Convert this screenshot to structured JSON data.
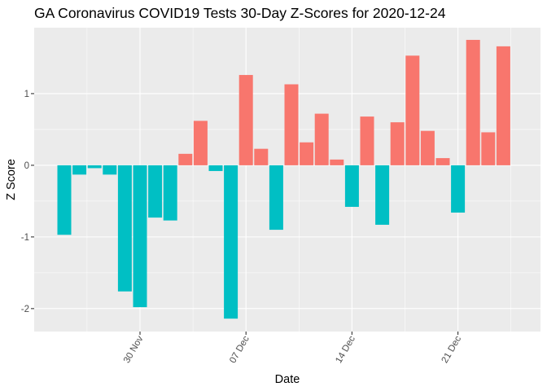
{
  "chart_data": {
    "type": "bar",
    "title": "GA Coronavirus COVID19 Tests 30-Day Z-Scores for 2020-12-24",
    "xlabel": "Date",
    "ylabel": "Z Score",
    "x_ticks": [
      "30 Nov",
      "07 Dec",
      "14 Dec",
      "21 Dec"
    ],
    "y_ticks": [
      -2,
      -1,
      0,
      1
    ],
    "ylim": [
      -2.32,
      1.92
    ],
    "grid": true,
    "legend": "none",
    "colors": {
      "positive": "#F8766D",
      "negative": "#00BFC4",
      "panel": "#EBEBEB",
      "grid": "#FFFFFF"
    },
    "categories": [
      "2020-11-25",
      "2020-11-26",
      "2020-11-27",
      "2020-11-28",
      "2020-11-29",
      "2020-11-30",
      "2020-12-01",
      "2020-12-02",
      "2020-12-03",
      "2020-12-04",
      "2020-12-05",
      "2020-12-06",
      "2020-12-07",
      "2020-12-08",
      "2020-12-09",
      "2020-12-10",
      "2020-12-11",
      "2020-12-12",
      "2020-12-13",
      "2020-12-14",
      "2020-12-15",
      "2020-12-16",
      "2020-12-17",
      "2020-12-18",
      "2020-12-19",
      "2020-12-20",
      "2020-12-21",
      "2020-12-22",
      "2020-12-23",
      "2020-12-24"
    ],
    "values": [
      -0.97,
      -0.13,
      -0.04,
      -0.13,
      -1.76,
      -1.98,
      -0.73,
      -0.77,
      0.16,
      0.62,
      -0.08,
      -2.14,
      1.26,
      0.23,
      -0.9,
      1.13,
      0.32,
      0.72,
      0.08,
      -0.58,
      0.68,
      -0.83,
      0.6,
      1.53,
      0.48,
      0.1,
      -0.66,
      1.75,
      0.46,
      1.66
    ]
  }
}
